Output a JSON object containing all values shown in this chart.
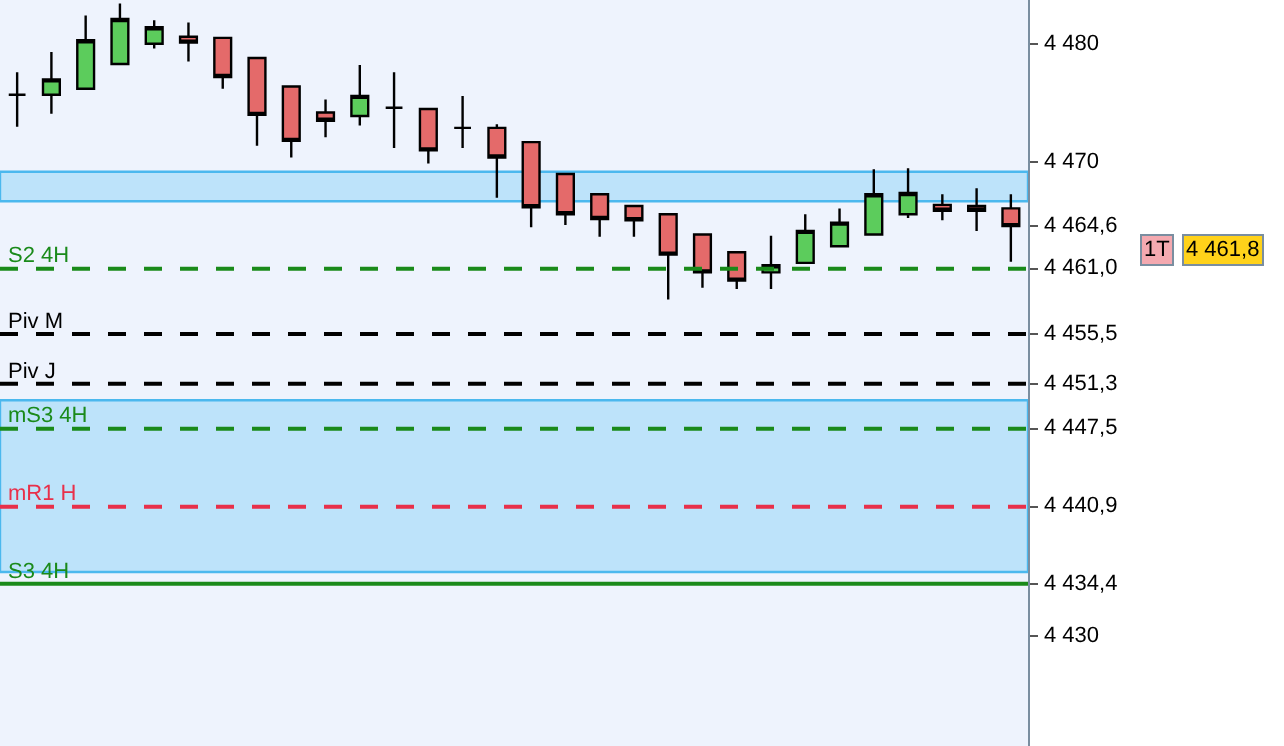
{
  "chart_data": {
    "type": "candlestick",
    "categories": [
      null,
      null,
      null,
      null,
      null,
      null,
      null,
      null,
      null,
      null,
      null,
      null,
      null,
      null,
      null,
      null,
      null,
      null,
      null,
      null,
      null,
      null,
      null,
      null,
      null,
      null,
      null,
      null,
      null,
      null
    ],
    "ohlc": [
      [
        4475.7,
        4477.6,
        4473.0,
        4475.7
      ],
      [
        4475.7,
        4479.3,
        4474.1,
        4477.0
      ],
      [
        4476.2,
        4482.4,
        4476.2,
        4480.3
      ],
      [
        4478.3,
        4483.4,
        4478.3,
        4482.1
      ],
      [
        4480.0,
        4482.0,
        4479.6,
        4481.4
      ],
      [
        4480.6,
        4481.8,
        4478.5,
        4480.1
      ],
      [
        4480.5,
        4480.5,
        4476.2,
        4477.2
      ],
      [
        4478.8,
        4478.8,
        4471.4,
        4474.0
      ],
      [
        4476.4,
        4476.4,
        4470.4,
        4471.8
      ],
      [
        4474.2,
        4475.3,
        4472.1,
        4473.5
      ],
      [
        4473.9,
        4478.2,
        4473.1,
        4475.6
      ],
      [
        4474.6,
        4477.6,
        4471.2,
        4474.6
      ],
      [
        4474.5,
        4474.5,
        4469.9,
        4471.0
      ],
      [
        4472.9,
        4475.6,
        4471.2,
        4472.9
      ],
      [
        4472.9,
        4473.2,
        4467.0,
        4470.4
      ],
      [
        4471.7,
        4471.7,
        4464.5,
        4466.2
      ],
      [
        4469.0,
        4469.0,
        4464.7,
        4465.6
      ],
      [
        4467.3,
        4467.3,
        4463.7,
        4465.2
      ],
      [
        4466.3,
        4466.3,
        4463.7,
        4465.1
      ],
      [
        4465.6,
        4465.6,
        4458.4,
        4462.2
      ],
      [
        4463.9,
        4463.9,
        4459.4,
        4460.7
      ],
      [
        4462.4,
        4462.4,
        4459.3,
        4460.0
      ],
      [
        4460.7,
        4463.8,
        4459.3,
        4461.3
      ],
      [
        4461.5,
        4465.6,
        4461.5,
        4464.2
      ],
      [
        4462.9,
        4466.1,
        4462.9,
        4464.9
      ],
      [
        4463.9,
        4469.4,
        4463.9,
        4467.3
      ],
      [
        4465.6,
        4469.5,
        4465.3,
        4467.4
      ],
      [
        4466.4,
        4467.3,
        4465.1,
        4465.9
      ],
      [
        4466.3,
        4467.8,
        4464.2,
        4465.9
      ],
      [
        4466.1,
        4467.3,
        4461.6,
        4464.6
      ]
    ],
    "ylim": [
      4420.7,
      4483.7
    ],
    "yticks": [
      {
        "value": 4430,
        "label": "4 430"
      },
      {
        "value": 4434.4,
        "label": "4 434,4"
      },
      {
        "value": 4440.9,
        "label": "4 440,9"
      },
      {
        "value": 4447.5,
        "label": "4 447,5"
      },
      {
        "value": 4451.3,
        "label": "4 451,3"
      },
      {
        "value": 4455.5,
        "label": "4 455,5"
      },
      {
        "value": 4461.0,
        "label": "4 461,0"
      },
      {
        "value": 4464.6,
        "label": "4 464,6"
      },
      {
        "value": 4470,
        "label": "4 470"
      },
      {
        "value": 4480,
        "label": "4 480"
      }
    ],
    "tick_labels": "y",
    "grid": false,
    "bands": [
      {
        "axis": "y",
        "from": 4466.7,
        "to": 4469.2,
        "color": "#bde3fa"
      },
      {
        "axis": "y",
        "from": 4435.4,
        "to": 4449.9,
        "color": "#bde3fa"
      }
    ],
    "ref_lines": [
      {
        "axis": "y",
        "value": 4461.0,
        "label": "S2 4H",
        "color": "#1a8a1a",
        "line_style": "dashed"
      },
      {
        "axis": "y",
        "value": 4455.5,
        "label": "Piv M",
        "color": "#000000",
        "line_style": "dashed"
      },
      {
        "axis": "y",
        "value": 4451.3,
        "label": "Piv J",
        "color": "#000000",
        "line_style": "dashed"
      },
      {
        "axis": "y",
        "value": 4447.5,
        "label": "mS3 4H",
        "color": "#1a8a1a",
        "line_style": "dashed"
      },
      {
        "axis": "y",
        "value": 4440.9,
        "label": "mR1 H",
        "color": "#e8304a",
        "line_style": "dashed"
      },
      {
        "axis": "y",
        "value": 4434.4,
        "label": "S3 4H",
        "color": "#1a8a1a",
        "line_style": "solid"
      }
    ],
    "annotations": [
      "1T",
      "4 461,8"
    ]
  }
}
